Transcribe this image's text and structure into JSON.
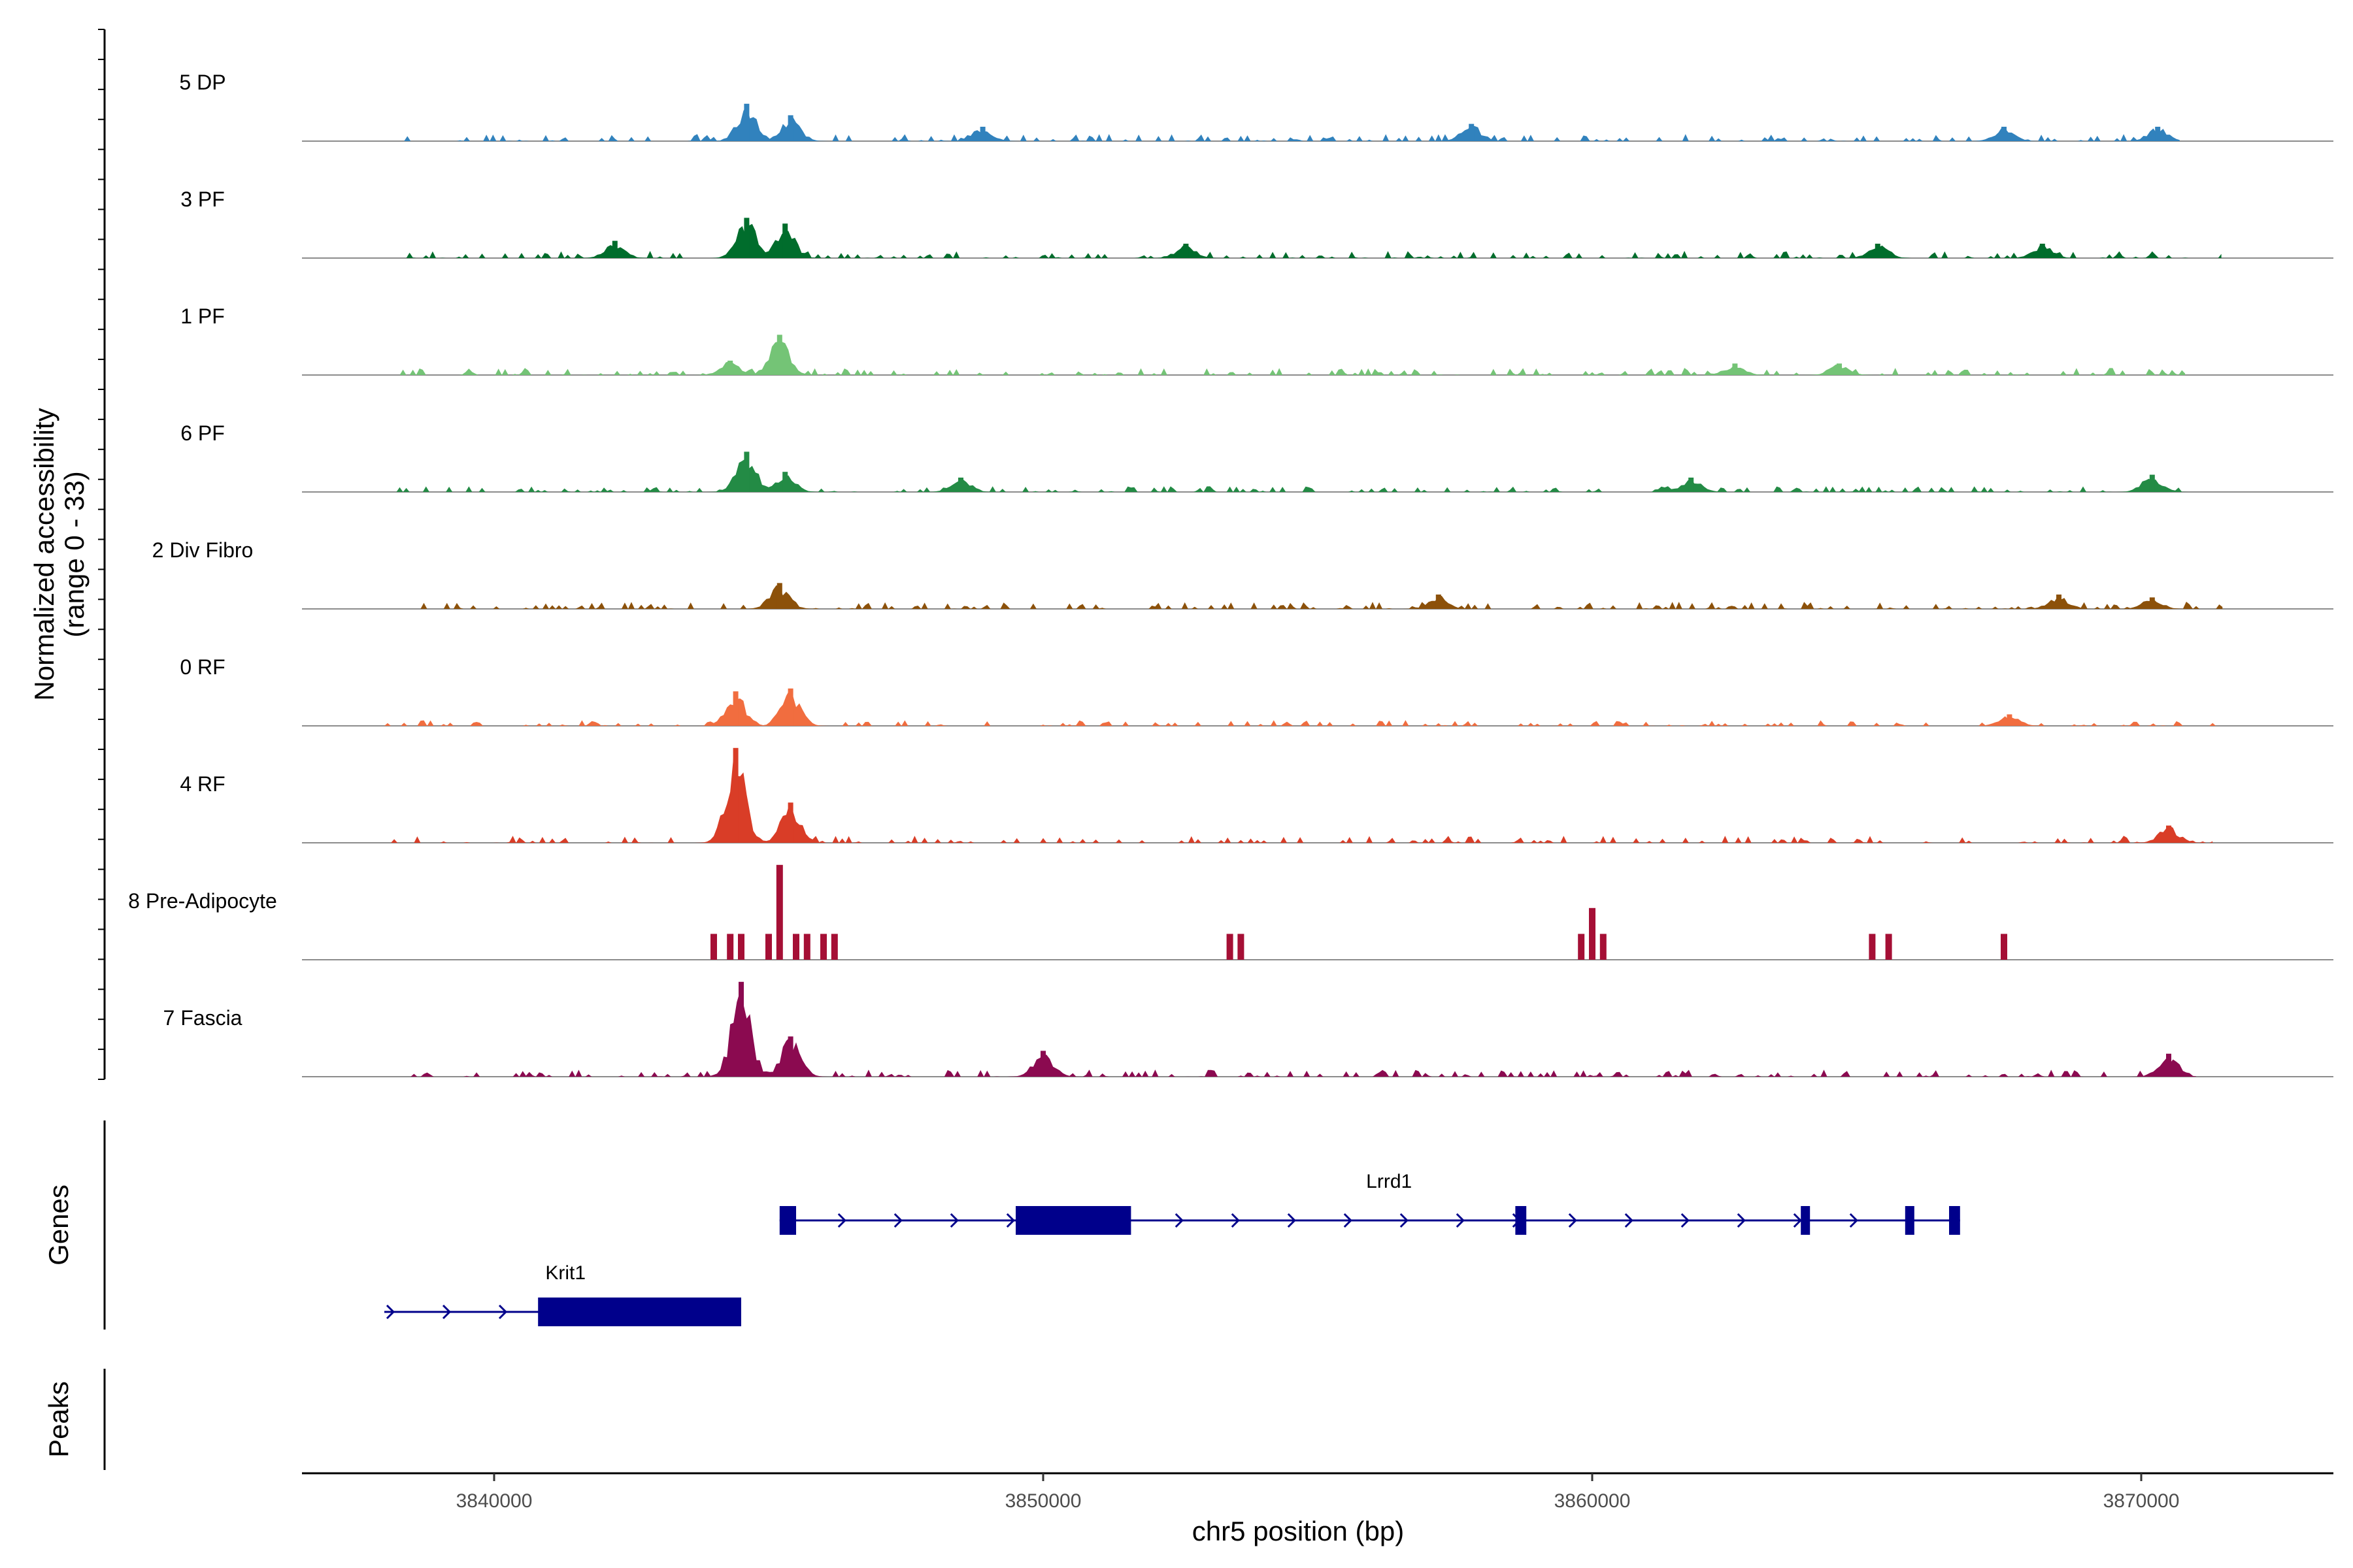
{
  "chart_data": {
    "type": "area",
    "title": "",
    "xlabel": "chr5 position (bp)",
    "ylabel_line1": "Normalized accessibility",
    "ylabel_line2": "(range 0 - 33)",
    "y_range": [
      0,
      33
    ],
    "xlim": [
      3836500,
      3873500
    ],
    "x_ticks": [
      3840000,
      3850000,
      3860000,
      3870000
    ],
    "x_tick_labels": [
      "3840000",
      "3850000",
      "3860000",
      "3870000"
    ],
    "tracks": [
      {
        "name": "5 DP",
        "color": "#3182bd",
        "peaks": [
          [
            3844600,
            13
          ],
          [
            3845400,
            9
          ],
          [
            3848900,
            5
          ],
          [
            3857800,
            6
          ],
          [
            3867500,
            5
          ],
          [
            3870300,
            5
          ]
        ],
        "sparse_range": [
          3838000,
          3870700
        ],
        "noise": 2.5
      },
      {
        "name": "3 PF",
        "color": "#006d2c",
        "peaks": [
          [
            3842200,
            6
          ],
          [
            3844600,
            14
          ],
          [
            3845300,
            12
          ],
          [
            3852600,
            5
          ],
          [
            3865200,
            5
          ],
          [
            3868200,
            5
          ]
        ],
        "sparse_range": [
          3838100,
          3871500
        ],
        "noise": 2.5
      },
      {
        "name": "1 PF",
        "color": "#74c476",
        "peaks": [
          [
            3845200,
            14
          ],
          [
            3844300,
            5
          ],
          [
            3862600,
            4
          ],
          [
            3864500,
            4
          ]
        ],
        "sparse_range": [
          3838100,
          3870800
        ],
        "noise": 2.5
      },
      {
        "name": "6 PF",
        "color": "#238b45",
        "peaks": [
          [
            3844600,
            14
          ],
          [
            3845300,
            7
          ],
          [
            3848500,
            5
          ],
          [
            3861800,
            5
          ],
          [
            3870200,
            6
          ]
        ],
        "sparse_range": [
          3838100,
          3871200
        ],
        "noise": 2.0
      },
      {
        "name": "2 Div Fibro",
        "color": "#8c510a",
        "peaks": [
          [
            3845200,
            9
          ],
          [
            3857200,
            5
          ],
          [
            3868500,
            5
          ],
          [
            3870200,
            4
          ]
        ],
        "sparse_range": [
          3838000,
          3871500
        ],
        "noise": 2.5
      },
      {
        "name": "0 RF",
        "color": "#f16d3f",
        "peaks": [
          [
            3844400,
            12
          ],
          [
            3845400,
            13
          ],
          [
            3867600,
            4
          ]
        ],
        "sparse_range": [
          3838000,
          3871500
        ],
        "noise": 2.0
      },
      {
        "name": "4 RF",
        "color": "#d93d27",
        "peaks": [
          [
            3844400,
            33
          ],
          [
            3845400,
            14
          ],
          [
            3870500,
            6
          ]
        ],
        "sparse_range": [
          3838000,
          3871300
        ],
        "noise": 2.5
      },
      {
        "name": "8 Pre-Adipocyte",
        "color": "#a50f35",
        "bars": [
          [
            3844000,
            9
          ],
          [
            3844300,
            9
          ],
          [
            3844500,
            9
          ],
          [
            3845000,
            9
          ],
          [
            3845200,
            33
          ],
          [
            3845500,
            9
          ],
          [
            3845700,
            9
          ],
          [
            3846000,
            9
          ],
          [
            3846200,
            9
          ],
          [
            3853400,
            9
          ],
          [
            3853600,
            9
          ],
          [
            3859800,
            9
          ],
          [
            3860000,
            18
          ],
          [
            3860200,
            9
          ],
          [
            3865100,
            9
          ],
          [
            3865400,
            9
          ],
          [
            3867500,
            9
          ]
        ]
      },
      {
        "name": "7 Fascia",
        "color": "#8b0a50",
        "peaks": [
          [
            3844500,
            33
          ],
          [
            3845400,
            14
          ],
          [
            3850000,
            9
          ],
          [
            3870500,
            8
          ]
        ],
        "sparse_range": [
          3838000,
          3871000
        ],
        "noise": 2.5
      }
    ],
    "genes": [
      {
        "name": "Lrrd1",
        "start": 3845200,
        "end": 3866700,
        "strand": "+",
        "exons": [
          [
            3845200,
            3845500
          ],
          [
            3849500,
            3851600
          ],
          [
            3858600,
            3858800
          ],
          [
            3863800,
            3863950
          ],
          [
            3865700,
            3865800
          ],
          [
            3866500,
            3866700
          ]
        ]
      },
      {
        "name": "Krit1",
        "start": 3838000,
        "end": 3844500,
        "strand": "+",
        "exons": [
          [
            3840800,
            3844500
          ]
        ]
      }
    ],
    "panel_labels": {
      "genes": "Genes",
      "peaks": "Peaks"
    }
  }
}
